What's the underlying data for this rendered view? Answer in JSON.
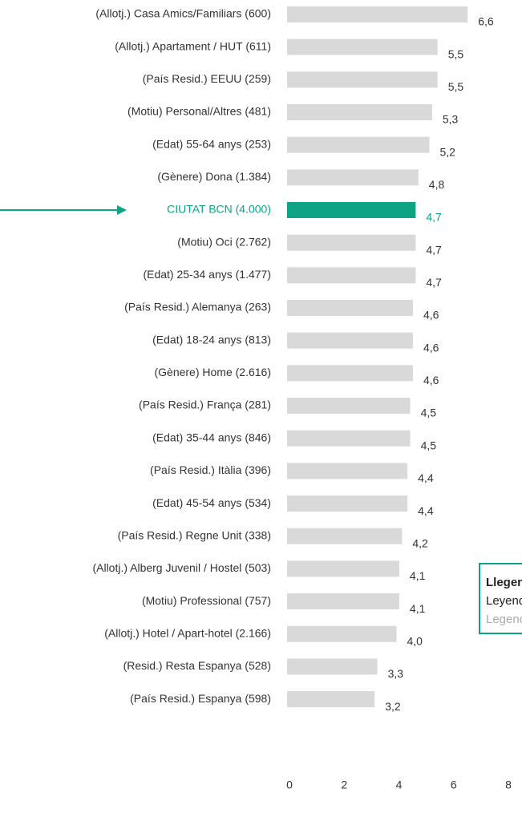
{
  "chart_data": {
    "type": "bar",
    "orientation": "horizontal",
    "categories": [
      "(Allotj.) Casa Amics/Familiars (600)",
      "(Allotj.) Apartament / HUT (611)",
      "(País Resid.) EEUU (259)",
      "(Motiu) Personal/Altres (481)",
      "(Edat) 55-64 anys (253)",
      "(Gènere) Dona (1.384)",
      "CIUTAT BCN (4.000)",
      "(Motiu) Oci (2.762)",
      "(Edat) 25-34 anys  (1.477)",
      "(País Resid.) Alemanya (263)",
      "(Edat) 18-24 anys (813)",
      "(Gènere) Home (2.616)",
      "(País Resid.) França (281)",
      "(Edat) 35-44 anys (846)",
      "(País Resid.) Itàlia (396)",
      "(Edat) 45-54 anys (534)",
      "(País Resid.) Regne Unit (338)",
      "(Allotj.) Alberg Juvenil / Hostel  (503)",
      "(Motiu) Professional (757)",
      "(Allotj.) Hotel / Apart-hotel (2.166)",
      "(Resid.) Resta Espanya (528)",
      "(País Resid.) Espanya (598)"
    ],
    "values": [
      6.6,
      5.5,
      5.5,
      5.3,
      5.2,
      4.8,
      4.7,
      4.7,
      4.7,
      4.6,
      4.6,
      4.6,
      4.5,
      4.5,
      4.4,
      4.4,
      4.2,
      4.1,
      4.1,
      4.0,
      3.3,
      3.2
    ],
    "value_labels": [
      "6,6",
      "5,5",
      "5,5",
      "5,3",
      "5,2",
      "4,8",
      "4,7",
      "4,7",
      "4,7",
      "4,6",
      "4,6",
      "4,6",
      "4,5",
      "4,5",
      "4,4",
      "4,4",
      "4,2",
      "4,1",
      "4,1",
      "4,0",
      "3,3",
      "3,2"
    ],
    "colors": [
      "#d9d9d9",
      "#d9d9d9",
      "#d9d9d9",
      "#d9d9d9",
      "#d9d9d9",
      "#d9d9d9",
      "#0fa386",
      "#d9d9d9",
      "#d9d9d9",
      "#d9d9d9",
      "#d9d9d9",
      "#d9d9d9",
      "#d9d9d9",
      "#d9d9d9",
      "#d9d9d9",
      "#d9d9d9",
      "#d9d9d9",
      "#d9d9d9",
      "#d9d9d9",
      "#d9d9d9",
      "#d9d9d9",
      "#d9d9d9"
    ],
    "xlim": [
      0,
      8
    ],
    "xticks": [
      0,
      2,
      4,
      6,
      8
    ],
    "legend": [
      "Llegenda",
      "Leyenda",
      "Legend"
    ]
  }
}
